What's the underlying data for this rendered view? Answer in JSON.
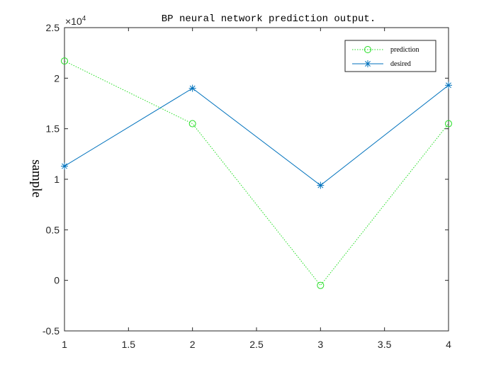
{
  "chart_data": {
    "type": "line",
    "title": "BP neural network prediction output.",
    "xlabel": "",
    "ylabel": "sample",
    "xlim": [
      1,
      4
    ],
    "ylim": [
      -0.5,
      2.5
    ],
    "y_multiplier_label": "×10",
    "y_multiplier_exponent": "4",
    "xticks": [
      1,
      1.5,
      2,
      2.5,
      3,
      3.5,
      4
    ],
    "xtick_labels": [
      "1",
      "1.5",
      "2",
      "2.5",
      "3",
      "3.5",
      "4"
    ],
    "yticks": [
      -0.5,
      0,
      0.5,
      1,
      1.5,
      2,
      2.5
    ],
    "ytick_labels": [
      "-0.5",
      "0",
      "0.5",
      "1",
      "1.5",
      "2",
      "2.5"
    ],
    "grid": false,
    "legend_position": "top-right",
    "series": [
      {
        "name": "prediction",
        "x": [
          1,
          2,
          3,
          4
        ],
        "y": [
          2.17,
          1.55,
          -0.05,
          1.55
        ],
        "color": "#22dd22",
        "line_style": "dotted",
        "marker": "circle"
      },
      {
        "name": "desired",
        "x": [
          1,
          2,
          3,
          4
        ],
        "y": [
          1.13,
          1.9,
          0.94,
          1.93
        ],
        "color": "#0072bd",
        "line_style": "solid",
        "marker": "asterisk"
      }
    ]
  }
}
